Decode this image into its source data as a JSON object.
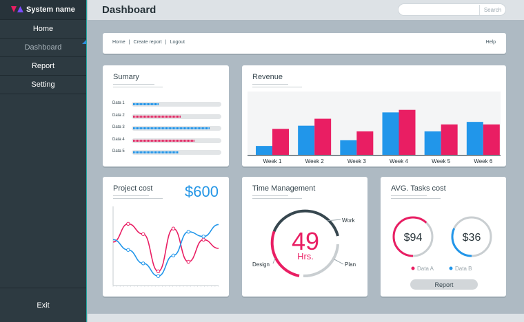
{
  "brand": {
    "name": "System name"
  },
  "nav": {
    "items": [
      {
        "label": "Home",
        "active": false
      },
      {
        "label": "Dashboard",
        "active": true
      },
      {
        "label": "Report",
        "active": false
      },
      {
        "label": "Setting",
        "active": false
      }
    ],
    "exit_label": "Exit"
  },
  "header": {
    "title": "Dashboard",
    "search": {
      "placeholder": "",
      "button_label": "Search"
    }
  },
  "topbar": {
    "links": [
      "Home",
      "Create report",
      "Logout"
    ],
    "help_label": "Help"
  },
  "summary": {
    "title": "Sumary",
    "rows": [
      {
        "label": "Data 1",
        "value": 0.29,
        "color": "#1e90e6"
      },
      {
        "label": "Data 2",
        "value": 0.55,
        "color": "#dc2460"
      },
      {
        "label": "Data 3",
        "value": 0.88,
        "color": "#1e90e6"
      },
      {
        "label": "Data 4",
        "value": 0.71,
        "color": "#dc2460"
      },
      {
        "label": "Data 5",
        "value": 0.52,
        "color": "#1e90e6"
      }
    ]
  },
  "revenue": {
    "title": "Revenue",
    "chart_data": {
      "type": "bar",
      "categories": [
        "Week 1",
        "Week 2",
        "Week 3",
        "Week 4",
        "Week 5",
        "Week 6"
      ],
      "series": [
        {
          "color": "#2196ea",
          "values": [
            14,
            46,
            23,
            67,
            37,
            52
          ]
        },
        {
          "color": "#e91e63",
          "values": [
            41,
            57,
            37,
            71,
            48,
            48
          ]
        }
      ],
      "ylim": [
        0,
        100
      ]
    }
  },
  "project_cost": {
    "title": "Project cost",
    "amount": "$600",
    "chart_data": {
      "type": "line",
      "x": [
        0,
        1,
        2,
        3,
        4,
        5,
        6,
        7
      ],
      "series": [
        {
          "color": "#e91e63",
          "values": [
            55,
            78,
            65,
            18,
            72,
            30,
            58,
            47
          ]
        },
        {
          "color": "#2196ea",
          "values": [
            58,
            45,
            28,
            12,
            38,
            68,
            62,
            77
          ]
        }
      ],
      "ylim": [
        0,
        100
      ]
    }
  },
  "time_management": {
    "title": "Time Management",
    "value": "49",
    "unit": "Hrs.",
    "segments": [
      {
        "label": "Work",
        "color": "#37474f"
      },
      {
        "label": "Plan",
        "color": "#c9ced1"
      },
      {
        "label": "Design",
        "color": "#e91e63"
      }
    ]
  },
  "tasks_cost": {
    "title": "AVG. Tasks cost",
    "items": [
      {
        "label": "Data A",
        "value": "$94",
        "color": "#e91e63",
        "fraction": 0.62
      },
      {
        "label": "Data B",
        "value": "$36",
        "color": "#2196ea",
        "fraction": 0.32
      }
    ],
    "button_label": "Report"
  }
}
